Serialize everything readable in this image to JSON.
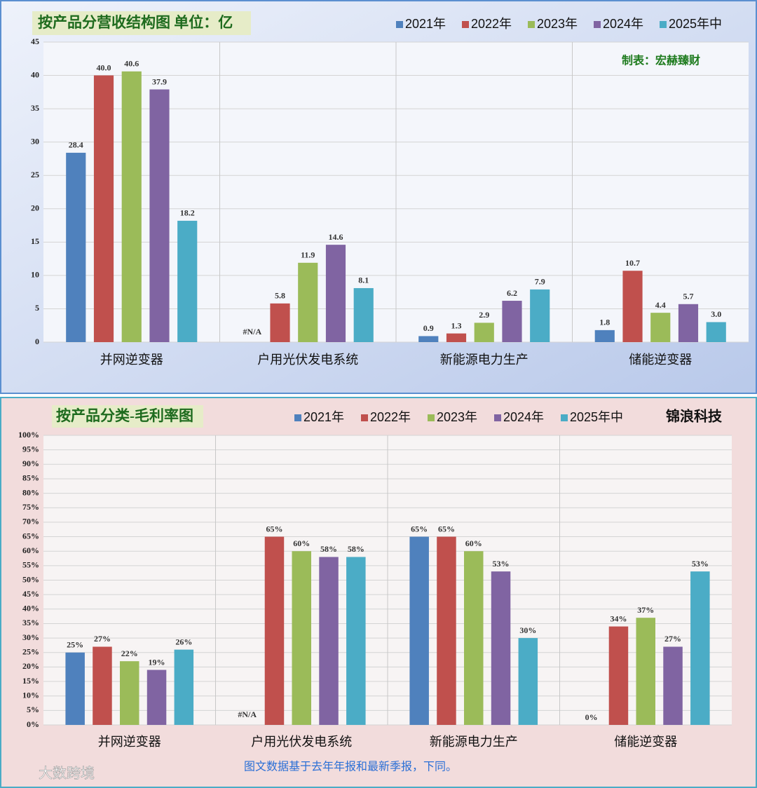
{
  "chart_data": [
    {
      "type": "bar",
      "title": "按产品分营收结构图 单位：亿",
      "annotation": "制表：宏赫臻财",
      "categories": [
        "并网逆变器",
        "户用光伏发电系统",
        "新能源电力生产",
        "储能逆变器"
      ],
      "series": [
        {
          "name": "2021年",
          "color": "#4f81bd",
          "values": [
            28.4,
            null,
            0.9,
            1.8
          ],
          "value_labels": [
            "28.4",
            "#N/A",
            "0.9",
            "1.8"
          ]
        },
        {
          "name": "2022年",
          "color": "#c0504d",
          "values": [
            40,
            5.8,
            1.3,
            10.7
          ],
          "value_labels": [
            "40.0",
            "5.8",
            "1.3",
            "10.7"
          ]
        },
        {
          "name": "2023年",
          "color": "#9bbb59",
          "values": [
            40.6,
            11.9,
            2.9,
            4.4
          ],
          "value_labels": [
            "40.6",
            "11.9",
            "2.9",
            "4.4"
          ]
        },
        {
          "name": "2024年",
          "color": "#8064a2",
          "values": [
            37.9,
            14.6,
            6.2,
            5.7
          ],
          "value_labels": [
            "37.9",
            "14.6",
            "6.2",
            "5.7"
          ]
        },
        {
          "name": "2025年中",
          "color": "#4bacc6",
          "label_color": "#0000cc",
          "values": [
            18.2,
            8.1,
            7.9,
            3
          ],
          "value_labels": [
            "18.2",
            "8.1",
            "7.9",
            "3.0"
          ]
        }
      ],
      "ylim": [
        0,
        45
      ],
      "yticks": [
        0,
        5,
        10,
        15,
        20,
        25,
        30,
        35,
        40,
        45
      ],
      "grid": true
    },
    {
      "type": "bar",
      "title": "按产品分类-毛利率图",
      "annotation": "锦浪科技",
      "footnote": "图文数据基于去年年报和最新季报，下同。",
      "watermark": "大数跨境",
      "categories": [
        "并网逆变器",
        "户用光伏发电系统",
        "新能源电力生产",
        "储能逆变器"
      ],
      "series": [
        {
          "name": "2021年",
          "color": "#4f81bd",
          "values": [
            25,
            null,
            65,
            0
          ],
          "value_labels": [
            "25%",
            "#N/A",
            "65%",
            "0%"
          ]
        },
        {
          "name": "2022年",
          "color": "#c0504d",
          "values": [
            27,
            65,
            65,
            34
          ],
          "value_labels": [
            "27%",
            "65%",
            "65%",
            "34%"
          ]
        },
        {
          "name": "2023年",
          "color": "#9bbb59",
          "values": [
            22,
            60,
            60,
            37
          ],
          "value_labels": [
            "22%",
            "60%",
            "60%",
            "37%"
          ]
        },
        {
          "name": "2024年",
          "color": "#8064a2",
          "values": [
            19,
            58,
            53,
            27
          ],
          "value_labels": [
            "19%",
            "58%",
            "53%",
            "27%"
          ]
        },
        {
          "name": "2025年中",
          "color": "#4bacc6",
          "label_color": "#0000cc",
          "values": [
            26,
            58,
            30,
            53
          ],
          "value_labels": [
            "26%",
            "58%",
            "30%",
            "53%"
          ]
        }
      ],
      "ylim": [
        0,
        100
      ],
      "yticks": [
        {
          "value": 0,
          "label": "0%"
        },
        {
          "value": 5,
          "label": "5%"
        },
        {
          "value": 10,
          "label": "10%"
        },
        {
          "value": 15,
          "label": "15%"
        },
        {
          "value": 20,
          "label": "20%"
        },
        {
          "value": 25,
          "label": "25%"
        },
        {
          "value": 30,
          "label": "30%"
        },
        {
          "value": 35,
          "label": "35%"
        },
        {
          "value": 40,
          "label": "40%"
        },
        {
          "value": 45,
          "label": "45%"
        },
        {
          "value": 50,
          "label": "50%"
        },
        {
          "value": 55,
          "label": "55%"
        },
        {
          "value": 60,
          "label": "60%"
        },
        {
          "value": 65,
          "label": "65%"
        },
        {
          "value": 70,
          "label": "70%"
        },
        {
          "value": 75,
          "label": "75%"
        },
        {
          "value": 80,
          "label": "80%"
        },
        {
          "value": 85,
          "label": "85%"
        },
        {
          "value": 90,
          "label": "90%"
        },
        {
          "value": 95,
          "label": "95%"
        },
        {
          "value": 100,
          "label": "100%"
        }
      ],
      "grid": true
    }
  ]
}
